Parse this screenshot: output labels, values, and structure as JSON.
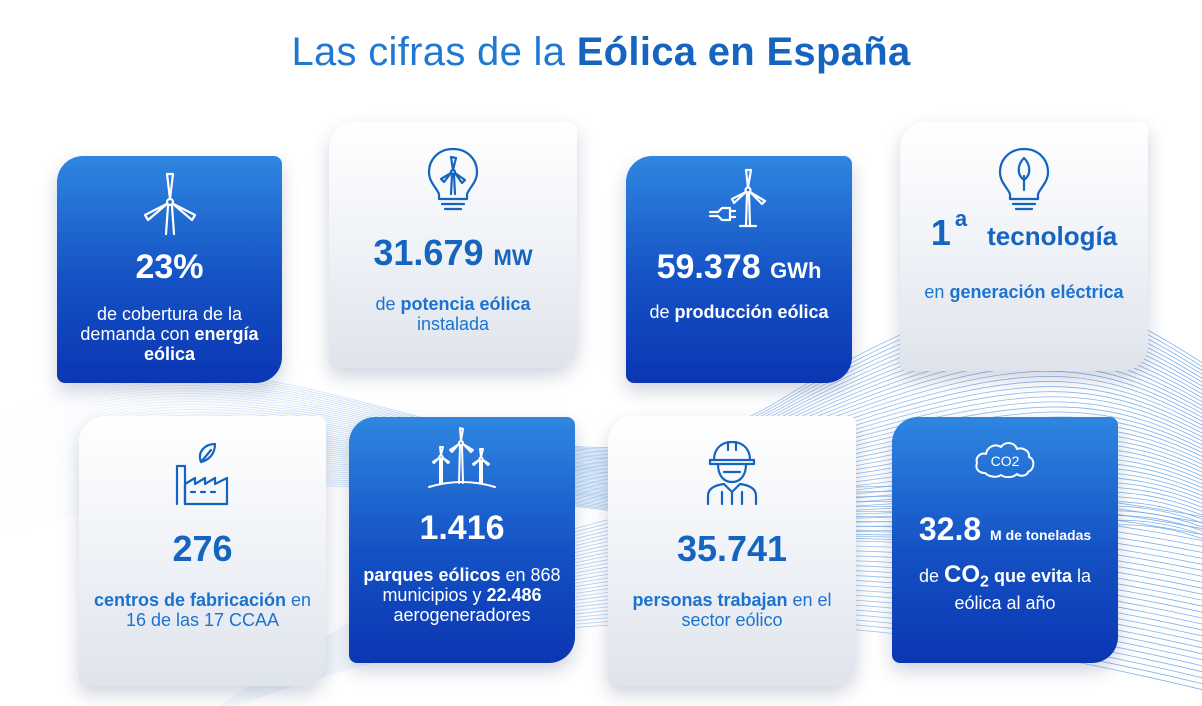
{
  "title": {
    "light": "Las cifras de la",
    "bold": "Eólica en España"
  },
  "cards": [
    {
      "number": "23%",
      "unit": "",
      "desc_pre": "de cobertura de la demanda con",
      "desc_bold": "energía eólica",
      "desc_post": "",
      "icon": "wind-turbine-icon"
    },
    {
      "number": "31.679",
      "unit": "MW",
      "desc_pre": "de",
      "desc_bold": "potencia eólica",
      "desc_post": "instalada",
      "icon": "lightbulb-turbine-icon"
    },
    {
      "number": "59.378",
      "unit": "GWh",
      "desc_pre": "de",
      "desc_bold": "producción eólica",
      "desc_post": "",
      "icon": "turbine-plug-icon"
    },
    {
      "number": "1",
      "sup": "a",
      "unit": "tecnología",
      "desc_pre": "en",
      "desc_bold": "generación eléctrica",
      "desc_post": "",
      "icon": "lightbulb-leaf-icon"
    },
    {
      "number": "276",
      "unit": "",
      "desc_bold": "centros de fabricación",
      "desc_post": "en 16 de las 17 CCAA",
      "icon": "factory-leaf-icon"
    },
    {
      "number": "1.416",
      "unit": "",
      "desc_bold": "parques eólicos",
      "desc_mid": "en 868 municipios y",
      "desc_bold2": "22.486",
      "desc_post": "aerogeneradores",
      "icon": "wind-farm-icon"
    },
    {
      "number": "35.741",
      "unit": "",
      "desc_bold": "personas trabajan",
      "desc_post": "en el sector eólico",
      "icon": "worker-icon"
    },
    {
      "number": "32.8",
      "unit": "M de toneladas",
      "desc_pre": "de",
      "desc_bold": "CO",
      "desc_sub": "2",
      "desc_bold_post": "que evita",
      "desc_post": "la eólica al año",
      "icon": "co2-cloud-icon",
      "icon_text": "CO2"
    }
  ]
}
